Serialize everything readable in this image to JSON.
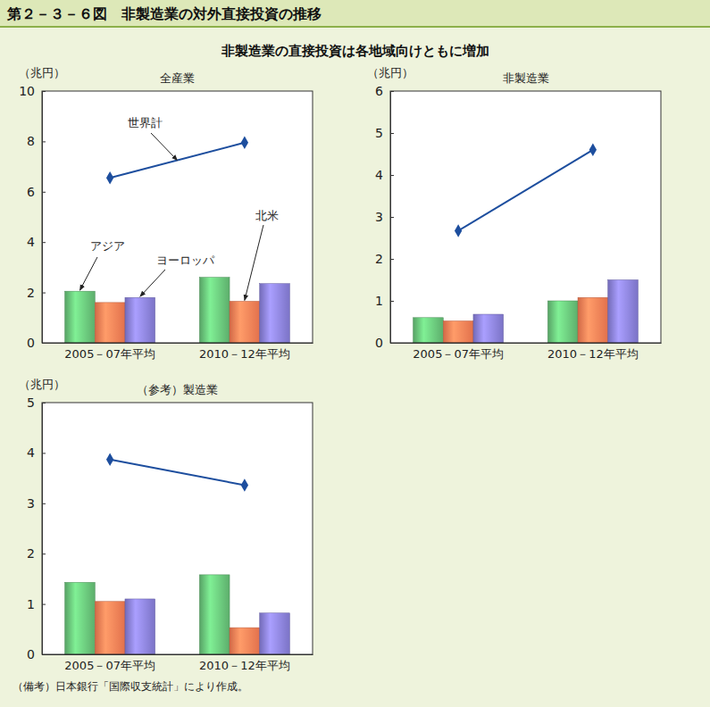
{
  "title": "第２－３－６図　非製造業の対外直接投資の推移",
  "subtitle": "非製造業の直接投資は各地域向けともに増加",
  "note": "（備考）日本銀行「国際収支統計」により作成。",
  "chart_data": [
    {
      "type": "bar",
      "title": "全産業",
      "y_label": "（兆円）",
      "categories": [
        "2005－07年平均",
        "2010－12年平均"
      ],
      "series": [
        {
          "name": "アジア",
          "type": "bar",
          "color": "#5dae6c",
          "values": [
            2.05,
            2.6
          ]
        },
        {
          "name": "北米",
          "type": "bar",
          "color": "#e2714c",
          "values": [
            1.6,
            1.65
          ]
        },
        {
          "name": "ヨーロッパ",
          "type": "bar",
          "color": "#7b73c6",
          "values": [
            1.8,
            2.35
          ]
        },
        {
          "name": "世界計",
          "type": "line",
          "color": "#1d4e9e",
          "marker": "diamond",
          "values": [
            6.55,
            7.95
          ]
        }
      ],
      "ylim": [
        0,
        10
      ],
      "yticks": [
        0,
        2,
        4,
        6,
        8,
        10
      ],
      "grid": false
    },
    {
      "type": "bar",
      "title": "非製造業",
      "y_label": "（兆円）",
      "categories": [
        "2005－07年平均",
        "2010－12年平均"
      ],
      "series": [
        {
          "type": "bar",
          "color": "#5dae6c",
          "values": [
            0.6,
            1.0
          ]
        },
        {
          "type": "bar",
          "color": "#e2714c",
          "values": [
            0.52,
            1.08
          ]
        },
        {
          "type": "bar",
          "color": "#7b73c6",
          "values": [
            0.68,
            1.5
          ]
        },
        {
          "type": "line",
          "color": "#1d4e9e",
          "marker": "diamond",
          "values": [
            2.67,
            4.6
          ]
        }
      ],
      "ylim": [
        0,
        6
      ],
      "yticks": [
        0,
        1,
        2,
        3,
        4,
        5,
        6
      ],
      "grid": false
    },
    {
      "type": "bar",
      "title": "（参考）製造業",
      "y_label": "（兆円）",
      "categories": [
        "2005－07年平均",
        "2010－12年平均"
      ],
      "series": [
        {
          "type": "bar",
          "color": "#5dae6c",
          "values": [
            1.43,
            1.58
          ]
        },
        {
          "type": "bar",
          "color": "#e2714c",
          "values": [
            1.05,
            0.53
          ]
        },
        {
          "type": "bar",
          "color": "#7b73c6",
          "values": [
            1.1,
            0.82
          ]
        },
        {
          "type": "line",
          "color": "#1d4e9e",
          "marker": "diamond",
          "values": [
            3.87,
            3.36
          ]
        }
      ],
      "ylim": [
        0,
        5
      ],
      "yticks": [
        0,
        1,
        2,
        3,
        4,
        5
      ],
      "grid": false
    }
  ]
}
